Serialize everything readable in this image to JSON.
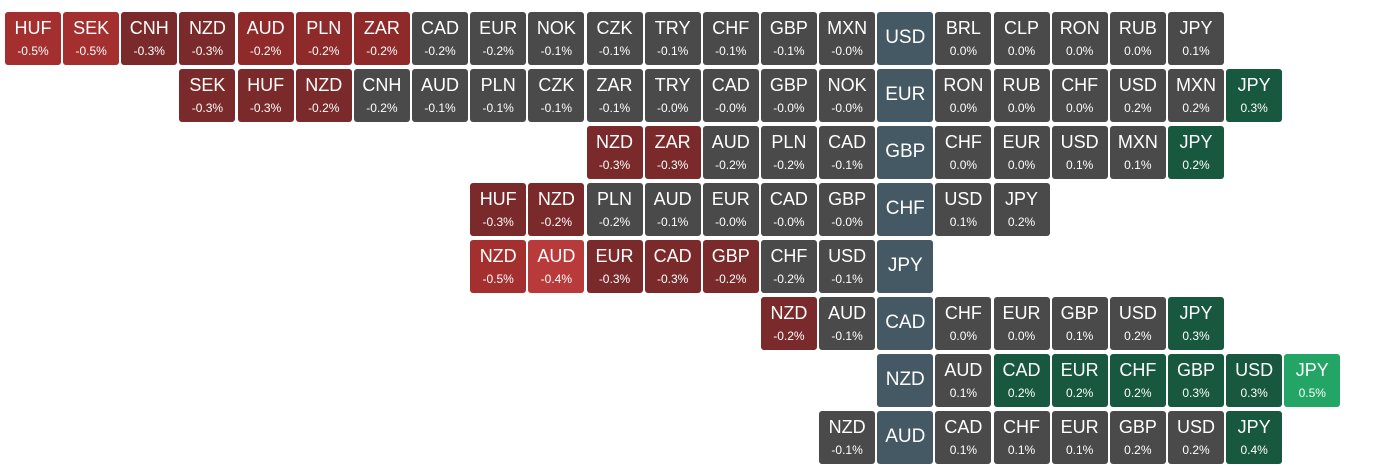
{
  "colors": {
    "base": "#445963",
    "neutral": "#4a4a4a",
    "neg_1": "#7a2a2a",
    "neg_2": "#8e2a2a",
    "neg_3": "#a32f2f",
    "neg_4": "#b83a3a",
    "pos_1": "#17583f",
    "pos_2": "#1c6f4c",
    "pos_3": "#22a565"
  },
  "rows": [
    {
      "base": "USD",
      "pairs": [
        {
          "code": "HUF",
          "change": "-0.5%",
          "tone": "neg_3"
        },
        {
          "code": "SEK",
          "change": "-0.5%",
          "tone": "neg_3"
        },
        {
          "code": "CNH",
          "change": "-0.3%",
          "tone": "neg_1"
        },
        {
          "code": "NZD",
          "change": "-0.3%",
          "tone": "neg_1"
        },
        {
          "code": "AUD",
          "change": "-0.2%",
          "tone": "neg_2"
        },
        {
          "code": "PLN",
          "change": "-0.2%",
          "tone": "neg_2"
        },
        {
          "code": "ZAR",
          "change": "-0.2%",
          "tone": "neg_2"
        },
        {
          "code": "CAD",
          "change": "-0.2%",
          "tone": "neutral"
        },
        {
          "code": "EUR",
          "change": "-0.2%",
          "tone": "neutral"
        },
        {
          "code": "NOK",
          "change": "-0.1%",
          "tone": "neutral"
        },
        {
          "code": "CZK",
          "change": "-0.1%",
          "tone": "neutral"
        },
        {
          "code": "TRY",
          "change": "-0.1%",
          "tone": "neutral"
        },
        {
          "code": "CHF",
          "change": "-0.1%",
          "tone": "neutral"
        },
        {
          "code": "GBP",
          "change": "-0.1%",
          "tone": "neutral"
        },
        {
          "code": "MXN",
          "change": "-0.0%",
          "tone": "neutral"
        },
        {
          "code": "BRL",
          "change": "0.0%",
          "tone": "neutral"
        },
        {
          "code": "CLP",
          "change": "0.0%",
          "tone": "neutral"
        },
        {
          "code": "RON",
          "change": "0.0%",
          "tone": "neutral"
        },
        {
          "code": "RUB",
          "change": "0.0%",
          "tone": "neutral"
        },
        {
          "code": "JPY",
          "change": "0.1%",
          "tone": "neutral"
        }
      ]
    },
    {
      "base": "EUR",
      "pairs": [
        {
          "code": "SEK",
          "change": "-0.3%",
          "tone": "neg_1"
        },
        {
          "code": "HUF",
          "change": "-0.3%",
          "tone": "neg_1"
        },
        {
          "code": "NZD",
          "change": "-0.2%",
          "tone": "neg_1"
        },
        {
          "code": "CNH",
          "change": "-0.2%",
          "tone": "neutral"
        },
        {
          "code": "AUD",
          "change": "-0.1%",
          "tone": "neutral"
        },
        {
          "code": "PLN",
          "change": "-0.1%",
          "tone": "neutral"
        },
        {
          "code": "CZK",
          "change": "-0.1%",
          "tone": "neutral"
        },
        {
          "code": "ZAR",
          "change": "-0.1%",
          "tone": "neutral"
        },
        {
          "code": "TRY",
          "change": "-0.0%",
          "tone": "neutral"
        },
        {
          "code": "CAD",
          "change": "-0.0%",
          "tone": "neutral"
        },
        {
          "code": "GBP",
          "change": "-0.0%",
          "tone": "neutral"
        },
        {
          "code": "NOK",
          "change": "-0.0%",
          "tone": "neutral"
        },
        {
          "code": "RON",
          "change": "0.0%",
          "tone": "neutral"
        },
        {
          "code": "RUB",
          "change": "0.0%",
          "tone": "neutral"
        },
        {
          "code": "CHF",
          "change": "0.0%",
          "tone": "neutral"
        },
        {
          "code": "USD",
          "change": "0.2%",
          "tone": "neutral"
        },
        {
          "code": "MXN",
          "change": "0.2%",
          "tone": "neutral"
        },
        {
          "code": "JPY",
          "change": "0.3%",
          "tone": "pos_1"
        }
      ]
    },
    {
      "base": "GBP",
      "pairs": [
        {
          "code": "NZD",
          "change": "-0.3%",
          "tone": "neg_1"
        },
        {
          "code": "ZAR",
          "change": "-0.3%",
          "tone": "neg_1"
        },
        {
          "code": "AUD",
          "change": "-0.2%",
          "tone": "neutral"
        },
        {
          "code": "PLN",
          "change": "-0.2%",
          "tone": "neutral"
        },
        {
          "code": "CAD",
          "change": "-0.1%",
          "tone": "neutral"
        },
        {
          "code": "CHF",
          "change": "0.0%",
          "tone": "neutral"
        },
        {
          "code": "EUR",
          "change": "0.0%",
          "tone": "neutral"
        },
        {
          "code": "USD",
          "change": "0.1%",
          "tone": "neutral"
        },
        {
          "code": "MXN",
          "change": "0.1%",
          "tone": "neutral"
        },
        {
          "code": "JPY",
          "change": "0.2%",
          "tone": "pos_1"
        }
      ]
    },
    {
      "base": "CHF",
      "pairs": [
        {
          "code": "HUF",
          "change": "-0.3%",
          "tone": "neg_1"
        },
        {
          "code": "NZD",
          "change": "-0.2%",
          "tone": "neg_1"
        },
        {
          "code": "PLN",
          "change": "-0.2%",
          "tone": "neutral"
        },
        {
          "code": "AUD",
          "change": "-0.1%",
          "tone": "neutral"
        },
        {
          "code": "EUR",
          "change": "-0.0%",
          "tone": "neutral"
        },
        {
          "code": "CAD",
          "change": "-0.0%",
          "tone": "neutral"
        },
        {
          "code": "GBP",
          "change": "-0.0%",
          "tone": "neutral"
        },
        {
          "code": "USD",
          "change": "0.1%",
          "tone": "neutral"
        },
        {
          "code": "JPY",
          "change": "0.2%",
          "tone": "neutral"
        }
      ]
    },
    {
      "base": "JPY",
      "pairs": [
        {
          "code": "NZD",
          "change": "-0.5%",
          "tone": "neg_3"
        },
        {
          "code": "AUD",
          "change": "-0.4%",
          "tone": "neg_4"
        },
        {
          "code": "EUR",
          "change": "-0.3%",
          "tone": "neg_1"
        },
        {
          "code": "CAD",
          "change": "-0.3%",
          "tone": "neg_1"
        },
        {
          "code": "GBP",
          "change": "-0.2%",
          "tone": "neg_1"
        },
        {
          "code": "CHF",
          "change": "-0.2%",
          "tone": "neutral"
        },
        {
          "code": "USD",
          "change": "-0.1%",
          "tone": "neutral"
        }
      ]
    },
    {
      "base": "CAD",
      "pairs": [
        {
          "code": "NZD",
          "change": "-0.2%",
          "tone": "neg_1"
        },
        {
          "code": "AUD",
          "change": "-0.1%",
          "tone": "neutral"
        },
        {
          "code": "CHF",
          "change": "0.0%",
          "tone": "neutral"
        },
        {
          "code": "EUR",
          "change": "0.0%",
          "tone": "neutral"
        },
        {
          "code": "GBP",
          "change": "0.1%",
          "tone": "neutral"
        },
        {
          "code": "USD",
          "change": "0.2%",
          "tone": "neutral"
        },
        {
          "code": "JPY",
          "change": "0.3%",
          "tone": "pos_1"
        }
      ]
    },
    {
      "base": "NZD",
      "pairs": [
        {
          "code": "AUD",
          "change": "0.1%",
          "tone": "neutral"
        },
        {
          "code": "CAD",
          "change": "0.2%",
          "tone": "pos_1"
        },
        {
          "code": "EUR",
          "change": "0.2%",
          "tone": "pos_1"
        },
        {
          "code": "CHF",
          "change": "0.2%",
          "tone": "pos_1"
        },
        {
          "code": "GBP",
          "change": "0.3%",
          "tone": "pos_1"
        },
        {
          "code": "USD",
          "change": "0.3%",
          "tone": "pos_1"
        },
        {
          "code": "JPY",
          "change": "0.5%",
          "tone": "pos_3"
        }
      ]
    },
    {
      "base": "AUD",
      "pairs": [
        {
          "code": "NZD",
          "change": "-0.1%",
          "tone": "neutral"
        },
        {
          "code": "CAD",
          "change": "0.1%",
          "tone": "neutral"
        },
        {
          "code": "CHF",
          "change": "0.1%",
          "tone": "neutral"
        },
        {
          "code": "EUR",
          "change": "0.1%",
          "tone": "neutral"
        },
        {
          "code": "GBP",
          "change": "0.2%",
          "tone": "neutral"
        },
        {
          "code": "USD",
          "change": "0.2%",
          "tone": "neutral"
        },
        {
          "code": "JPY",
          "change": "0.4%",
          "tone": "pos_1"
        }
      ]
    }
  ]
}
